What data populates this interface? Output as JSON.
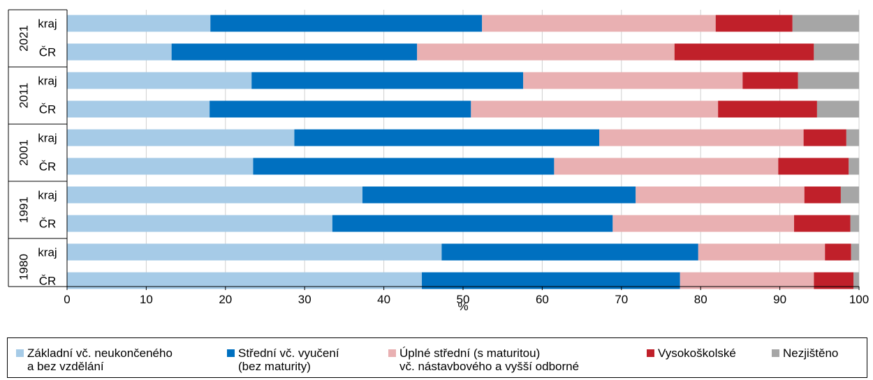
{
  "chart_data": {
    "type": "bar",
    "orientation": "horizontal",
    "stacked": true,
    "xlabel": "%",
    "xlim": [
      0,
      100
    ],
    "xticks": [
      "0",
      "10",
      "20",
      "30",
      "40",
      "50",
      "60",
      "70",
      "80",
      "90",
      "100"
    ],
    "grid": "vertical",
    "legend_position": "bottom",
    "groups": [
      {
        "year": "2021",
        "rows": [
          {
            "label": "kraj",
            "values": [
              18.1,
              34.3,
              29.5,
              9.7,
              8.4
            ]
          },
          {
            "label": "ČR",
            "values": [
              13.2,
              31.0,
              32.5,
              17.6,
              5.7
            ]
          }
        ]
      },
      {
        "year": "2011",
        "rows": [
          {
            "label": "kraj",
            "values": [
              23.3,
              34.3,
              27.7,
              7.0,
              7.7
            ]
          },
          {
            "label": "ČR",
            "values": [
              18.0,
              33.0,
              31.2,
              12.5,
              5.3
            ]
          }
        ]
      },
      {
        "year": "2001",
        "rows": [
          {
            "label": "kraj",
            "values": [
              28.7,
              38.5,
              25.8,
              5.4,
              1.6
            ]
          },
          {
            "label": "ČR",
            "values": [
              23.5,
              38.0,
              28.3,
              8.9,
              1.3
            ]
          }
        ]
      },
      {
        "year": "1991",
        "rows": [
          {
            "label": "kraj",
            "values": [
              37.3,
              34.5,
              21.3,
              4.6,
              2.3
            ]
          },
          {
            "label": "ČR",
            "values": [
              33.5,
              35.4,
              22.9,
              7.1,
              1.1
            ]
          }
        ]
      },
      {
        "year": "1980",
        "rows": [
          {
            "label": "kraj",
            "values": [
              47.3,
              32.4,
              16.0,
              3.3,
              1.0
            ]
          },
          {
            "label": "ČR",
            "values": [
              44.8,
              32.6,
              16.9,
              5.0,
              0.7
            ]
          }
        ]
      }
    ],
    "series": [
      {
        "name_lines": [
          "Základní vč. neukončeného",
          "a bez vzdělání"
        ],
        "color": "#a6cbe7"
      },
      {
        "name_lines": [
          "Střední vč. vyučení",
          "(bez maturity)"
        ],
        "color": "#0070c0"
      },
      {
        "name_lines": [
          "Úplné střední (s maturitou)",
          "vč. nástavbového a vyšší odborné"
        ],
        "color": "#e9b0b2"
      },
      {
        "name_lines": [
          "Vysokoškolské"
        ],
        "color": "#c0202a"
      },
      {
        "name_lines": [
          "Nezjištěno"
        ],
        "color": "#a6a6a6"
      }
    ]
  }
}
